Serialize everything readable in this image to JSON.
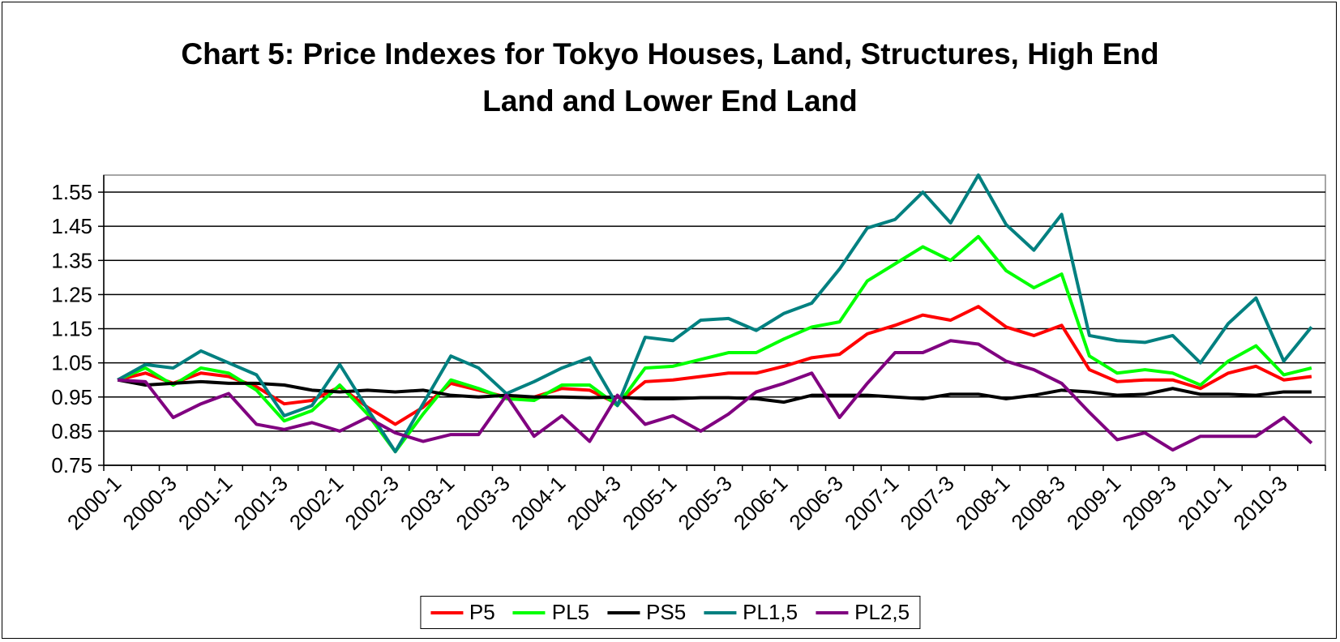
{
  "chart_data": {
    "type": "line",
    "title": "Chart 5: Price Indexes for Tokyo Houses, Land, Structures, High End Land and Lower End Land",
    "categories": [
      "2000-1",
      null,
      "2000-3",
      null,
      "2001-1",
      null,
      "2001-3",
      null,
      "2002-1",
      null,
      "2002-3",
      null,
      "2003-1",
      null,
      "2003-3",
      null,
      "2004-1",
      null,
      "2004-3",
      null,
      "2005-1",
      null,
      "2005-3",
      null,
      "2006-1",
      null,
      "2006-3",
      null,
      "2007-1",
      null,
      "2007-3",
      null,
      "2008-1",
      null,
      "2008-3",
      null,
      "2009-1",
      null,
      "2009-3",
      null,
      "2010-1",
      null,
      "2010-3",
      null
    ],
    "ylim": [
      0.75,
      1.6
    ],
    "yticks": [
      0.75,
      0.85,
      0.95,
      1.05,
      1.15,
      1.25,
      1.35,
      1.45,
      1.55
    ],
    "grid": true,
    "legend": "bottom",
    "series": [
      {
        "name": "P5",
        "color": "#ff0000",
        "values": [
          1.0,
          1.02,
          0.99,
          1.02,
          1.01,
          0.98,
          0.93,
          0.94,
          0.98,
          0.92,
          0.87,
          0.92,
          0.99,
          0.97,
          0.95,
          0.95,
          0.975,
          0.97,
          0.93,
          0.995,
          1.0,
          1.01,
          1.02,
          1.02,
          1.04,
          1.065,
          1.075,
          1.135,
          1.16,
          1.19,
          1.175,
          1.215,
          1.155,
          1.13,
          1.16,
          1.03,
          0.995,
          1.0,
          1.0,
          0.975,
          1.02,
          1.04,
          1.0,
          1.01
        ]
      },
      {
        "name": "PL5",
        "color": "#00ff00",
        "values": [
          1.0,
          1.035,
          0.985,
          1.035,
          1.02,
          0.97,
          0.88,
          0.91,
          0.985,
          0.9,
          0.79,
          0.9,
          1.0,
          0.975,
          0.945,
          0.94,
          0.985,
          0.985,
          0.925,
          1.035,
          1.04,
          1.06,
          1.08,
          1.08,
          1.12,
          1.155,
          1.17,
          1.29,
          1.34,
          1.39,
          1.35,
          1.42,
          1.32,
          1.27,
          1.31,
          1.07,
          1.02,
          1.03,
          1.02,
          0.985,
          1.055,
          1.1,
          1.015,
          1.035
        ]
      },
      {
        "name": "PS5",
        "color": "#000000",
        "values": [
          1.0,
          0.985,
          0.99,
          0.995,
          0.99,
          0.99,
          0.985,
          0.97,
          0.965,
          0.97,
          0.965,
          0.97,
          0.955,
          0.95,
          0.955,
          0.95,
          0.95,
          0.948,
          0.95,
          0.945,
          0.945,
          0.948,
          0.948,
          0.945,
          0.935,
          0.955,
          0.955,
          0.955,
          0.95,
          0.945,
          0.958,
          0.958,
          0.945,
          0.955,
          0.97,
          0.965,
          0.955,
          0.958,
          0.975,
          0.958,
          0.958,
          0.955,
          0.965,
          0.965
        ]
      },
      {
        "name": "PL1,5",
        "color": "#008080",
        "values": [
          1.0,
          1.045,
          1.035,
          1.085,
          1.05,
          1.015,
          0.895,
          0.925,
          1.045,
          0.915,
          0.79,
          0.93,
          1.07,
          1.035,
          0.96,
          0.995,
          1.035,
          1.065,
          0.925,
          1.125,
          1.115,
          1.175,
          1.18,
          1.145,
          1.195,
          1.225,
          1.325,
          1.445,
          1.47,
          1.55,
          1.46,
          1.6,
          1.455,
          1.38,
          1.485,
          1.13,
          1.115,
          1.11,
          1.13,
          1.05,
          1.165,
          1.24,
          1.055,
          1.155
        ]
      },
      {
        "name": "PL2,5",
        "color": "#800080",
        "values": [
          1.0,
          0.995,
          0.89,
          0.93,
          0.96,
          0.87,
          0.855,
          0.875,
          0.85,
          0.89,
          0.845,
          0.82,
          0.84,
          0.84,
          0.955,
          0.835,
          0.895,
          0.82,
          0.955,
          0.87,
          0.895,
          0.85,
          0.9,
          0.965,
          0.99,
          1.02,
          0.89,
          0.99,
          1.08,
          1.08,
          1.115,
          1.105,
          1.055,
          1.03,
          0.99,
          0.905,
          0.825,
          0.845,
          0.795,
          0.835,
          0.835,
          0.835,
          0.89,
          0.815
        ]
      }
    ]
  }
}
